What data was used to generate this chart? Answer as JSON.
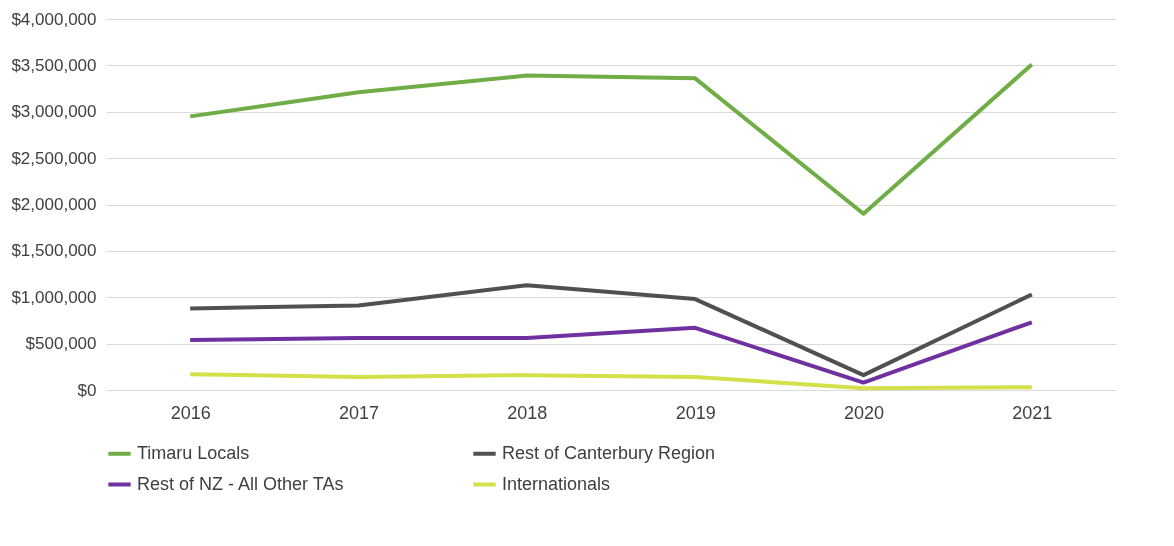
{
  "chart_data": {
    "type": "line",
    "categories": [
      "2016",
      "2017",
      "2018",
      "2019",
      "2020",
      "2021"
    ],
    "series": [
      {
        "name": "Timaru Locals",
        "color": "#70ad47",
        "values": [
          2950000,
          3210000,
          3390000,
          3360000,
          1900000,
          3510000
        ]
      },
      {
        "name": "Rest of Canterbury Region",
        "color": "#505050",
        "values": [
          880000,
          910000,
          1130000,
          980000,
          160000,
          1030000
        ]
      },
      {
        "name": "Rest of NZ - All Other TAs",
        "color": "#7030a0",
        "values": [
          540000,
          560000,
          560000,
          670000,
          80000,
          730000
        ]
      },
      {
        "name": "Internationals",
        "color": "#d4e04a",
        "values": [
          170000,
          140000,
          160000,
          140000,
          20000,
          30000
        ]
      }
    ],
    "ylim": [
      0,
      4000000
    ],
    "yticks": [
      {
        "value": 0,
        "label": "$0"
      },
      {
        "value": 500000,
        "label": "$500,000"
      },
      {
        "value": 1000000,
        "label": "$1,000,000"
      },
      {
        "value": 1500000,
        "label": "$1,500,000"
      },
      {
        "value": 2000000,
        "label": "$2,000,000"
      },
      {
        "value": 2500000,
        "label": "$2,500,000"
      },
      {
        "value": 3000000,
        "label": "$3,000,000"
      },
      {
        "value": 3500000,
        "label": "$3,500,000"
      },
      {
        "value": 4000000,
        "label": "$4,000,000"
      }
    ],
    "grid": "y",
    "legend": "bottom",
    "marker": "none",
    "line_style": "solid"
  }
}
